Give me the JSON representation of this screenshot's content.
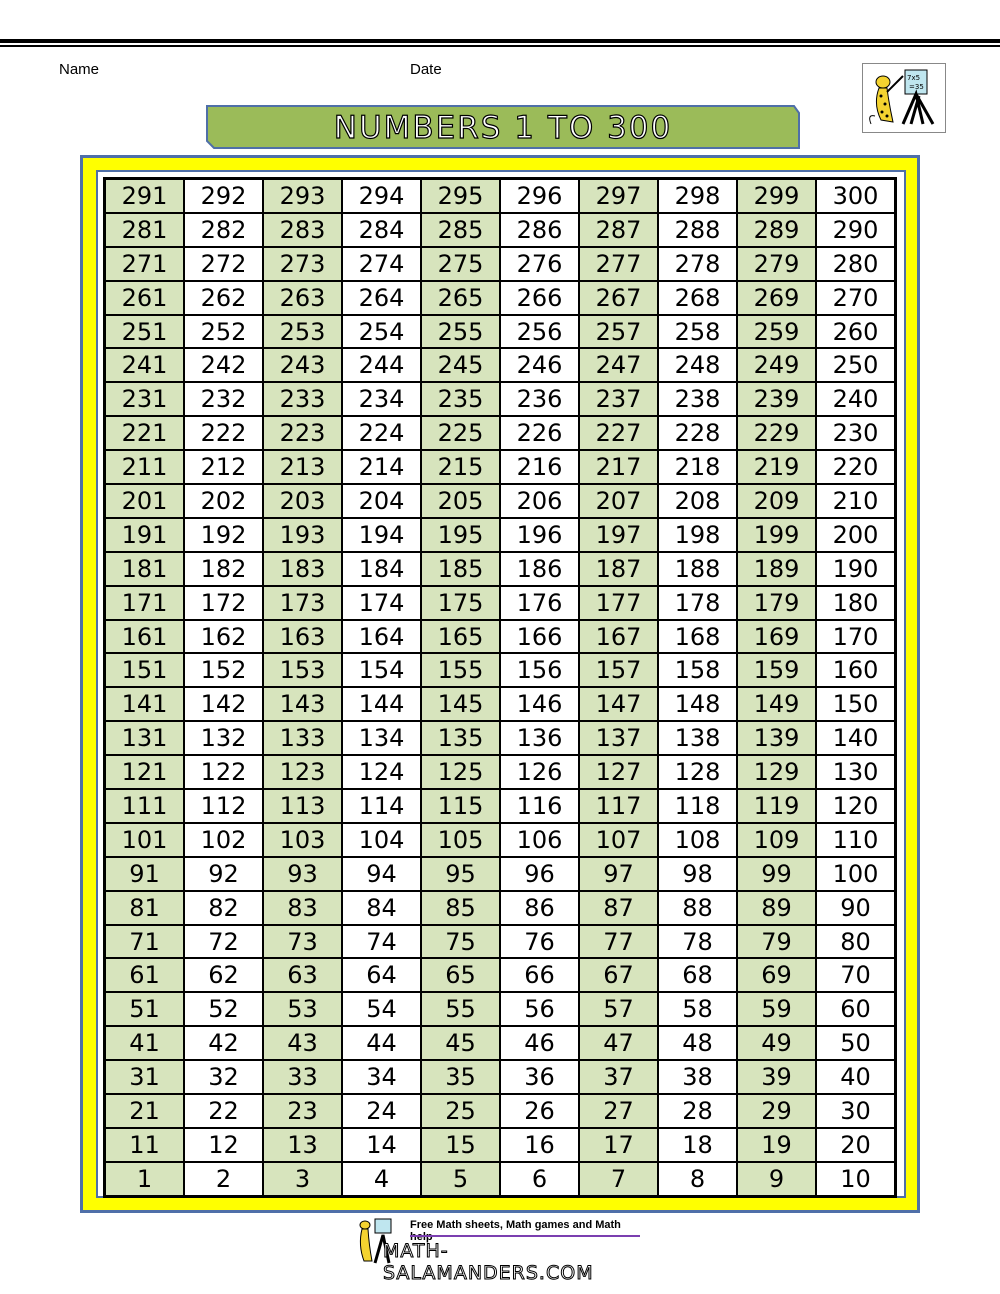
{
  "header": {
    "name_label": "Name",
    "date_label": "Date"
  },
  "title": "NUMBERS 1 TO 300",
  "colors": {
    "banner": "#9bbb59",
    "frame": "#ffff00",
    "frame_border": "#4f6fa8",
    "shaded_cell": "#d7e4bd"
  },
  "grid": [
    [
      291,
      292,
      293,
      294,
      295,
      296,
      297,
      298,
      299,
      300
    ],
    [
      281,
      282,
      283,
      284,
      285,
      286,
      287,
      288,
      289,
      290
    ],
    [
      271,
      272,
      273,
      274,
      275,
      276,
      277,
      278,
      279,
      280
    ],
    [
      261,
      262,
      263,
      264,
      265,
      266,
      267,
      268,
      269,
      270
    ],
    [
      251,
      252,
      253,
      254,
      255,
      256,
      257,
      258,
      259,
      260
    ],
    [
      241,
      242,
      243,
      244,
      245,
      246,
      247,
      248,
      249,
      250
    ],
    [
      231,
      232,
      233,
      234,
      235,
      236,
      237,
      238,
      239,
      240
    ],
    [
      221,
      222,
      223,
      224,
      225,
      226,
      227,
      228,
      229,
      230
    ],
    [
      211,
      212,
      213,
      214,
      215,
      216,
      217,
      218,
      219,
      220
    ],
    [
      201,
      202,
      203,
      204,
      205,
      206,
      207,
      208,
      209,
      210
    ],
    [
      191,
      192,
      193,
      194,
      195,
      196,
      197,
      198,
      199,
      200
    ],
    [
      181,
      182,
      183,
      184,
      185,
      186,
      187,
      188,
      189,
      190
    ],
    [
      171,
      172,
      173,
      174,
      175,
      176,
      177,
      178,
      179,
      180
    ],
    [
      161,
      162,
      163,
      164,
      165,
      166,
      167,
      168,
      169,
      170
    ],
    [
      151,
      152,
      153,
      154,
      155,
      156,
      157,
      158,
      159,
      160
    ],
    [
      141,
      142,
      143,
      144,
      145,
      146,
      147,
      148,
      149,
      150
    ],
    [
      131,
      132,
      133,
      134,
      135,
      136,
      137,
      138,
      139,
      140
    ],
    [
      121,
      122,
      123,
      124,
      125,
      126,
      127,
      128,
      129,
      130
    ],
    [
      111,
      112,
      113,
      114,
      115,
      116,
      117,
      118,
      119,
      120
    ],
    [
      101,
      102,
      103,
      104,
      105,
      106,
      107,
      108,
      109,
      110
    ],
    [
      91,
      92,
      93,
      94,
      95,
      96,
      97,
      98,
      99,
      100
    ],
    [
      81,
      82,
      83,
      84,
      85,
      86,
      87,
      88,
      89,
      90
    ],
    [
      71,
      72,
      73,
      74,
      75,
      76,
      77,
      78,
      79,
      80
    ],
    [
      61,
      62,
      63,
      64,
      65,
      66,
      67,
      68,
      69,
      70
    ],
    [
      51,
      52,
      53,
      54,
      55,
      56,
      57,
      58,
      59,
      60
    ],
    [
      41,
      42,
      43,
      44,
      45,
      46,
      47,
      48,
      49,
      50
    ],
    [
      31,
      32,
      33,
      34,
      35,
      36,
      37,
      38,
      39,
      40
    ],
    [
      21,
      22,
      23,
      24,
      25,
      26,
      27,
      28,
      29,
      30
    ],
    [
      11,
      12,
      13,
      14,
      15,
      16,
      17,
      18,
      19,
      20
    ],
    [
      1,
      2,
      3,
      4,
      5,
      6,
      7,
      8,
      9,
      10
    ]
  ],
  "logo": {
    "board_text": "7x5 =35"
  },
  "footer": {
    "tagline": "Free Math sheets, Math games and Math help",
    "site": "MATH-SALAMANDERS.COM"
  }
}
